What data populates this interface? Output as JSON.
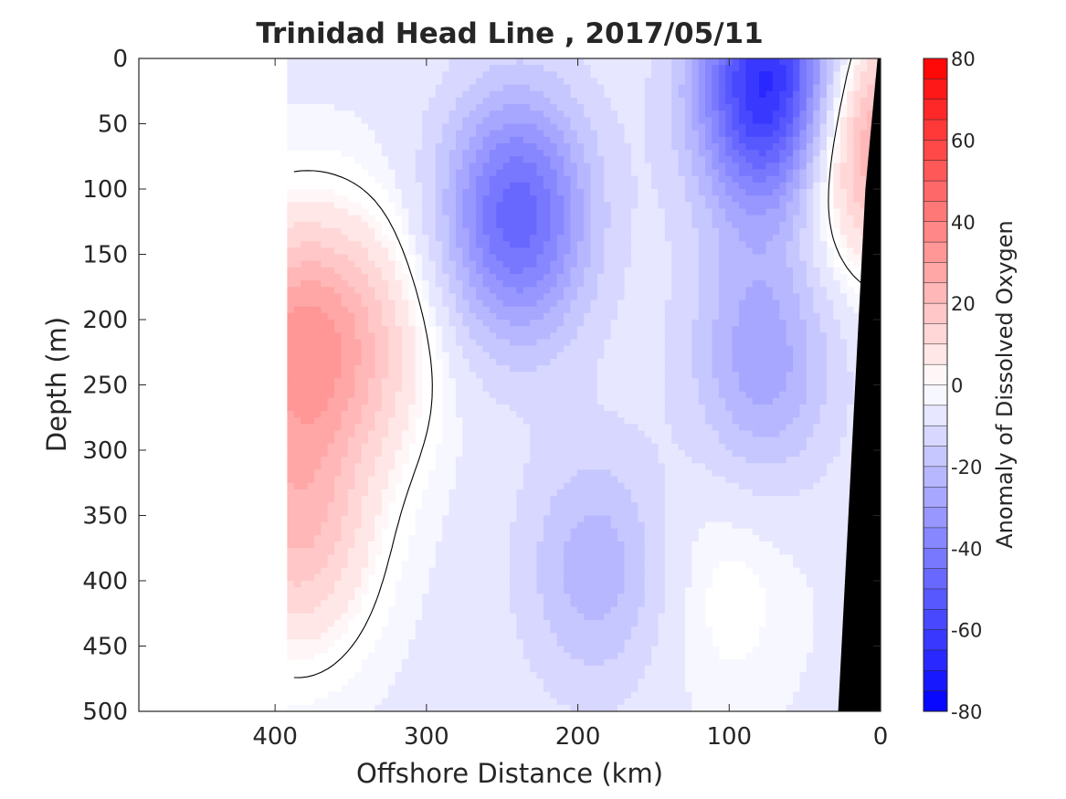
{
  "chart_data": {
    "type": "heatmap",
    "title": "Trinidad Head Line , 2017/05/11",
    "xlabel": "Offshore Distance (km)",
    "ylabel": "Depth (m)",
    "xlim": [
      490,
      0
    ],
    "x_reversed": true,
    "ylim": [
      0,
      500
    ],
    "y_reversed": true,
    "xticks": [
      400,
      300,
      200,
      100,
      0
    ],
    "xtick_labels": [
      "400",
      "300",
      "200",
      "100",
      "0"
    ],
    "yticks": [
      0,
      50,
      100,
      150,
      200,
      250,
      300,
      350,
      400,
      450,
      500
    ],
    "ytick_labels": [
      "0",
      "50",
      "100",
      "150",
      "200",
      "250",
      "300",
      "350",
      "400",
      "450",
      "500"
    ],
    "colorbar": {
      "label": "Anomaly of Dissolved Oxygen",
      "range": [
        -80,
        80
      ],
      "ticks": [
        80,
        60,
        40,
        20,
        0,
        -20,
        -40,
        -60,
        -80
      ],
      "tick_labels": [
        "80",
        "60",
        "40",
        "20",
        "0",
        "-20",
        "-40",
        "-60",
        "-80"
      ],
      "levels": 32,
      "colormap": "blue-white-red",
      "low_color": "#0000ff",
      "mid_color": "#ffffff",
      "high_color": "#ff0000"
    },
    "data_extent_km": [
      390,
      0
    ],
    "zero_contour": true,
    "bathymetry_color": "#000000",
    "features": [
      {
        "x": 240,
        "y": 120,
        "value": -45
      },
      {
        "x": 72,
        "y": 22,
        "value": -68
      },
      {
        "x": 78,
        "y": 230,
        "value": -25
      },
      {
        "x": 188,
        "y": 390,
        "value": -20
      },
      {
        "x": 388,
        "y": 215,
        "value": 28
      },
      {
        "x": 385,
        "y": 360,
        "value": 22
      },
      {
        "x": 12,
        "y": 60,
        "value": 35
      },
      {
        "x": 340,
        "y": 220,
        "value": 14
      },
      {
        "x": 105,
        "y": 400,
        "value": 3
      }
    ],
    "bathymetry": [
      [
        2,
        0
      ],
      [
        10,
        100
      ],
      [
        28,
        500
      ]
    ]
  }
}
